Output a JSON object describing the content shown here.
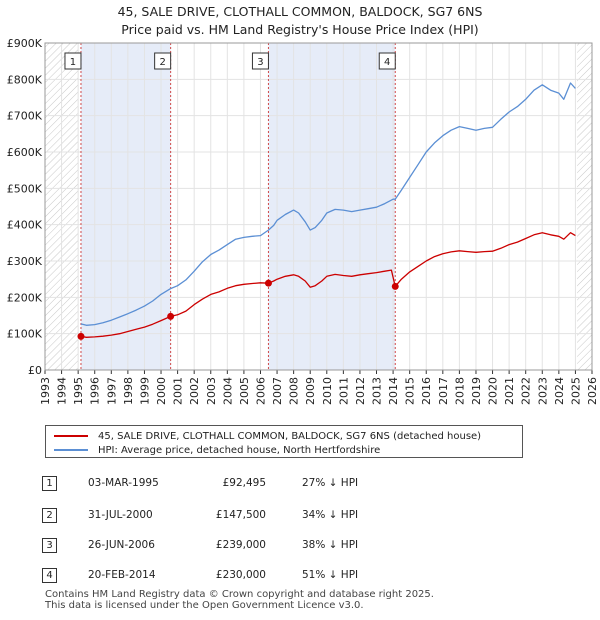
{
  "chart_data": {
    "type": "line",
    "title": "45, SALE DRIVE, CLOTHALL COMMON, BALDOCK, SG7 6NS",
    "subtitle": "Price paid vs. HM Land Registry's House Price Index (HPI)",
    "xlim": [
      1993,
      2026
    ],
    "ylim": [
      0,
      900000
    ],
    "x_ticks": [
      "1993",
      "1994",
      "1995",
      "1996",
      "1997",
      "1998",
      "1999",
      "2000",
      "2001",
      "2002",
      "2003",
      "2004",
      "2005",
      "2006",
      "2007",
      "2008",
      "2009",
      "2010",
      "2011",
      "2012",
      "2013",
      "2014",
      "2015",
      "2016",
      "2017",
      "2018",
      "2019",
      "2020",
      "2021",
      "2022",
      "2023",
      "2024",
      "2025",
      "2026"
    ],
    "y_ticks": [
      {
        "value": 0,
        "label": "£0"
      },
      {
        "value": 100000,
        "label": "£100K"
      },
      {
        "value": 200000,
        "label": "£200K"
      },
      {
        "value": 300000,
        "label": "£300K"
      },
      {
        "value": 400000,
        "label": "£400K"
      },
      {
        "value": 500000,
        "label": "£500K"
      },
      {
        "value": 600000,
        "label": "£600K"
      },
      {
        "value": 700000,
        "label": "£700K"
      },
      {
        "value": 800000,
        "label": "£800K"
      },
      {
        "value": 900000,
        "label": "£900K"
      }
    ],
    "hatched_ranges": [
      [
        1993,
        1995.0
      ],
      [
        2025.1,
        2026
      ]
    ],
    "shaded_ranges": [
      [
        1995.17,
        2000.58
      ],
      [
        2006.48,
        2014.13
      ]
    ],
    "series": [
      {
        "name": "45, SALE DRIVE, CLOTHALL COMMON, BALDOCK, SG7 6NS (detached house)",
        "color": "#cc0000",
        "points": [
          [
            1995.17,
            92495
          ],
          [
            1995.5,
            90000
          ],
          [
            1996,
            91000
          ],
          [
            1996.5,
            93000
          ],
          [
            1997,
            96000
          ],
          [
            1997.5,
            100000
          ],
          [
            1998,
            106000
          ],
          [
            1998.5,
            112000
          ],
          [
            1999,
            118000
          ],
          [
            1999.5,
            126000
          ],
          [
            2000,
            136000
          ],
          [
            2000.58,
            147500
          ],
          [
            2001,
            152000
          ],
          [
            2001.5,
            162000
          ],
          [
            2002,
            180000
          ],
          [
            2002.5,
            195000
          ],
          [
            2003,
            208000
          ],
          [
            2003.5,
            215000
          ],
          [
            2004,
            225000
          ],
          [
            2004.5,
            232000
          ],
          [
            2005,
            236000
          ],
          [
            2005.5,
            238000
          ],
          [
            2006,
            240000
          ],
          [
            2006.48,
            239000
          ],
          [
            2006.8,
            245000
          ],
          [
            2007,
            250000
          ],
          [
            2007.5,
            258000
          ],
          [
            2008,
            262000
          ],
          [
            2008.3,
            258000
          ],
          [
            2008.7,
            245000
          ],
          [
            2009,
            228000
          ],
          [
            2009.3,
            232000
          ],
          [
            2009.7,
            245000
          ],
          [
            2010,
            258000
          ],
          [
            2010.5,
            263000
          ],
          [
            2011,
            260000
          ],
          [
            2011.5,
            258000
          ],
          [
            2012,
            262000
          ],
          [
            2012.5,
            265000
          ],
          [
            2013,
            268000
          ],
          [
            2013.5,
            272000
          ],
          [
            2013.9,
            275000
          ],
          [
            2014.13,
            230000
          ],
          [
            2014.5,
            250000
          ],
          [
            2015,
            270000
          ],
          [
            2015.5,
            285000
          ],
          [
            2016,
            300000
          ],
          [
            2016.5,
            312000
          ],
          [
            2017,
            320000
          ],
          [
            2017.5,
            325000
          ],
          [
            2018,
            328000
          ],
          [
            2018.5,
            326000
          ],
          [
            2019,
            324000
          ],
          [
            2019.5,
            326000
          ],
          [
            2020,
            327000
          ],
          [
            2020.5,
            335000
          ],
          [
            2021,
            345000
          ],
          [
            2021.5,
            352000
          ],
          [
            2022,
            362000
          ],
          [
            2022.5,
            372000
          ],
          [
            2023,
            378000
          ],
          [
            2023.5,
            372000
          ],
          [
            2024,
            368000
          ],
          [
            2024.3,
            360000
          ],
          [
            2024.7,
            378000
          ],
          [
            2025,
            370000
          ]
        ]
      },
      {
        "name": "HPI: Average price, detached house, North Hertfordshire",
        "color": "#5b8fd4",
        "points": [
          [
            1995.17,
            127000
          ],
          [
            1995.5,
            123000
          ],
          [
            1996,
            125000
          ],
          [
            1996.5,
            130000
          ],
          [
            1997,
            137000
          ],
          [
            1997.5,
            146000
          ],
          [
            1998,
            155000
          ],
          [
            1998.5,
            165000
          ],
          [
            1999,
            176000
          ],
          [
            1999.5,
            190000
          ],
          [
            2000,
            208000
          ],
          [
            2000.58,
            224000
          ],
          [
            2001,
            232000
          ],
          [
            2001.5,
            248000
          ],
          [
            2002,
            272000
          ],
          [
            2002.5,
            298000
          ],
          [
            2003,
            318000
          ],
          [
            2003.5,
            330000
          ],
          [
            2004,
            345000
          ],
          [
            2004.5,
            360000
          ],
          [
            2005,
            365000
          ],
          [
            2005.5,
            368000
          ],
          [
            2006,
            370000
          ],
          [
            2006.48,
            385000
          ],
          [
            2006.8,
            398000
          ],
          [
            2007,
            412000
          ],
          [
            2007.5,
            428000
          ],
          [
            2008,
            440000
          ],
          [
            2008.3,
            432000
          ],
          [
            2008.7,
            408000
          ],
          [
            2009,
            385000
          ],
          [
            2009.3,
            392000
          ],
          [
            2009.7,
            412000
          ],
          [
            2010,
            432000
          ],
          [
            2010.5,
            442000
          ],
          [
            2011,
            440000
          ],
          [
            2011.5,
            436000
          ],
          [
            2012,
            440000
          ],
          [
            2012.5,
            444000
          ],
          [
            2013,
            448000
          ],
          [
            2013.5,
            458000
          ],
          [
            2014,
            470000
          ],
          [
            2014.13,
            470000
          ],
          [
            2014.5,
            495000
          ],
          [
            2015,
            530000
          ],
          [
            2015.5,
            565000
          ],
          [
            2016,
            600000
          ],
          [
            2016.5,
            625000
          ],
          [
            2017,
            645000
          ],
          [
            2017.5,
            660000
          ],
          [
            2018,
            670000
          ],
          [
            2018.5,
            665000
          ],
          [
            2019,
            660000
          ],
          [
            2019.5,
            665000
          ],
          [
            2020,
            668000
          ],
          [
            2020.5,
            690000
          ],
          [
            2021,
            710000
          ],
          [
            2021.5,
            725000
          ],
          [
            2022,
            745000
          ],
          [
            2022.5,
            770000
          ],
          [
            2023,
            785000
          ],
          [
            2023.5,
            770000
          ],
          [
            2024,
            762000
          ],
          [
            2024.3,
            745000
          ],
          [
            2024.7,
            790000
          ],
          [
            2025,
            775000
          ]
        ]
      }
    ],
    "sales": [
      {
        "n": "1",
        "year": 1995.17,
        "value": 92495
      },
      {
        "n": "2",
        "year": 2000.58,
        "value": 147500
      },
      {
        "n": "3",
        "year": 2006.48,
        "value": 239000
      },
      {
        "n": "4",
        "year": 2014.13,
        "value": 230000
      }
    ]
  },
  "legend": {
    "property_label": "45, SALE DRIVE, CLOTHALL COMMON, BALDOCK, SG7 6NS (detached house)",
    "hpi_label": "HPI: Average price, detached house, North Hertfordshire",
    "property_color": "#cc0000",
    "hpi_color": "#5b8fd4"
  },
  "sales_table": [
    {
      "n": "1",
      "date": "03-MAR-1995",
      "price": "£92,495",
      "hpi": "27% ↓ HPI"
    },
    {
      "n": "2",
      "date": "31-JUL-2000",
      "price": "£147,500",
      "hpi": "34% ↓ HPI"
    },
    {
      "n": "3",
      "date": "26-JUN-2006",
      "price": "£239,000",
      "hpi": "38% ↓ HPI"
    },
    {
      "n": "4",
      "date": "20-FEB-2014",
      "price": "£230,000",
      "hpi": "51% ↓ HPI"
    }
  ],
  "footer": {
    "line1": "Contains HM Land Registry data © Crown copyright and database right 2025.",
    "line2": "This data is licensed under the Open Government Licence v3.0."
  }
}
